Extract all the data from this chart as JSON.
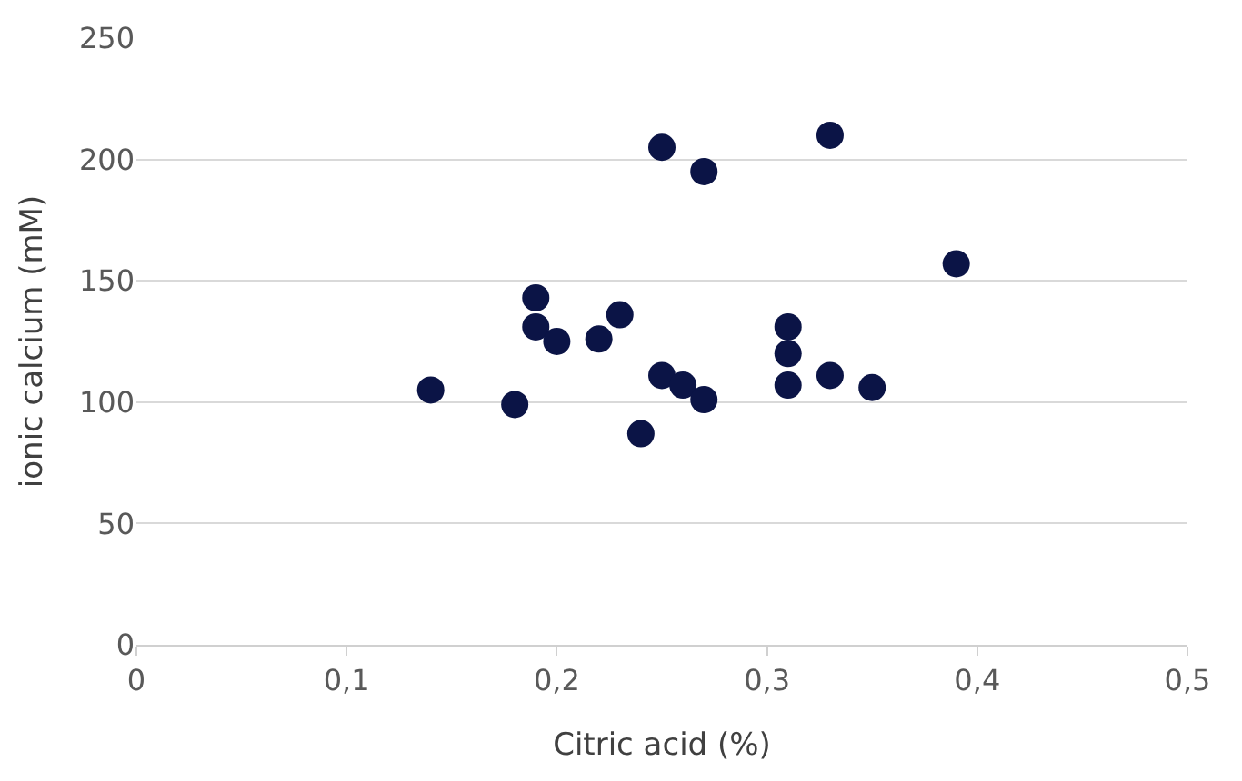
{
  "chart_data": {
    "type": "scatter",
    "xlabel": "Citric acid (%)",
    "ylabel": "ionic calcium (mM)",
    "x": [
      0.14,
      0.18,
      0.19,
      0.19,
      0.2,
      0.22,
      0.23,
      0.24,
      0.25,
      0.25,
      0.26,
      0.27,
      0.27,
      0.31,
      0.31,
      0.31,
      0.33,
      0.33,
      0.35,
      0.39
    ],
    "values": [
      105,
      99,
      143,
      131,
      125,
      126,
      136,
      87,
      205,
      111,
      107,
      195,
      101,
      131,
      120,
      107,
      210,
      111,
      106,
      157
    ],
    "color": "#0b1446",
    "marker": "circle",
    "xlim": [
      0,
      0.5
    ],
    "xticks": [
      {
        "value": 0,
        "label": "0"
      },
      {
        "value": 0.1,
        "label": "0,1"
      },
      {
        "value": 0.2,
        "label": "0,2"
      },
      {
        "value": 0.3,
        "label": "0,3"
      },
      {
        "value": 0.4,
        "label": "0,4"
      },
      {
        "value": 0.5,
        "label": "0,5"
      }
    ],
    "ylim": [
      0,
      250
    ],
    "yticks": [
      0,
      50,
      100,
      150,
      200,
      250
    ],
    "grid": "y"
  }
}
